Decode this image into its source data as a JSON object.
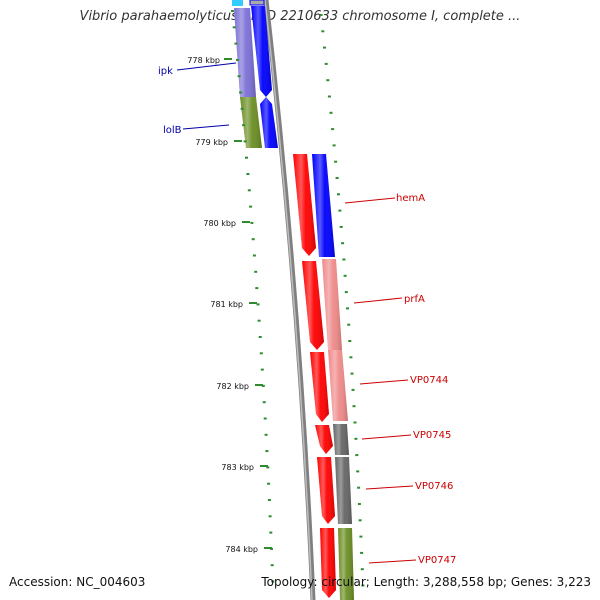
{
  "title": "Vibrio parahaemolyticus RIMD 2210633 chromosome I, complete ...",
  "footer": {
    "accession": "Accession: NC_004603",
    "stats": "Topology: circular; Length: 3,288,558 bp; Genes: 3,223"
  },
  "colors": {
    "forward_cds": "#0000ff",
    "reverse_cds": "#ff0000",
    "reverse_cds_pale": "#f08a8a",
    "cog_purple": "#7b6fd6",
    "cog_green": "#6b8e23",
    "cog_grey": "#666666",
    "tick": "#2e8b2e",
    "backbone": "#808080"
  },
  "ticks": [
    "778 kbp",
    "779 kbp",
    "780 kbp",
    "781 kbp",
    "782 kbp",
    "783 kbp",
    "784 kbp"
  ],
  "genes": [
    {
      "name": "ipk",
      "color": "#0000aa"
    },
    {
      "name": "lolB",
      "color": "#0000aa"
    },
    {
      "name": "hemA",
      "color": "#cc0000"
    },
    {
      "name": "prfA",
      "color": "#cc0000"
    },
    {
      "name": "VP0744",
      "color": "#cc0000"
    },
    {
      "name": "VP0745",
      "color": "#cc0000"
    },
    {
      "name": "VP0746",
      "color": "#cc0000"
    },
    {
      "name": "VP0747",
      "color": "#cc0000"
    }
  ]
}
